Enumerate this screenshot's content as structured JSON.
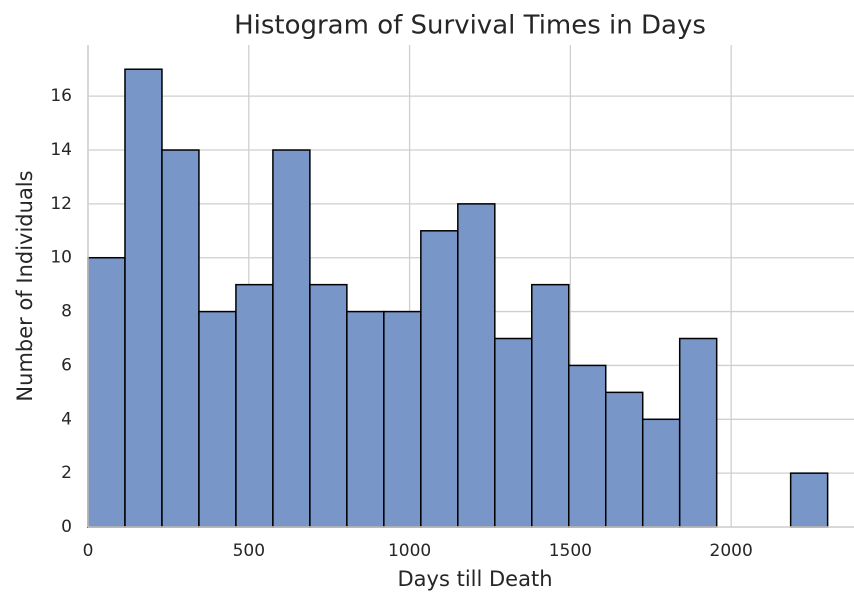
{
  "chart_data": {
    "type": "histogram",
    "title": "Histogram of Survival Times in Days",
    "xlabel": "Days till Death",
    "ylabel": "Number of Individuals",
    "bins": [
      0,
      115,
      230,
      345,
      460,
      575,
      690,
      805,
      920,
      1035,
      1150,
      1265,
      1380,
      1495,
      1610,
      1725,
      1840,
      1955,
      2070,
      2185,
      2300
    ],
    "counts": [
      10,
      17,
      14,
      8,
      9,
      14,
      9,
      8,
      8,
      11,
      12,
      7,
      9,
      6,
      5,
      4,
      7,
      0,
      0,
      2
    ],
    "color": "#7896c8",
    "edgecolor": "#000000",
    "xlim": [
      0,
      2382
    ],
    "ylim": [
      0,
      17.9
    ],
    "xticks": [
      0,
      500,
      1000,
      1500,
      2000
    ],
    "yticks": [
      0,
      2,
      4,
      6,
      8,
      10,
      12,
      14,
      16
    ],
    "grid": true
  }
}
